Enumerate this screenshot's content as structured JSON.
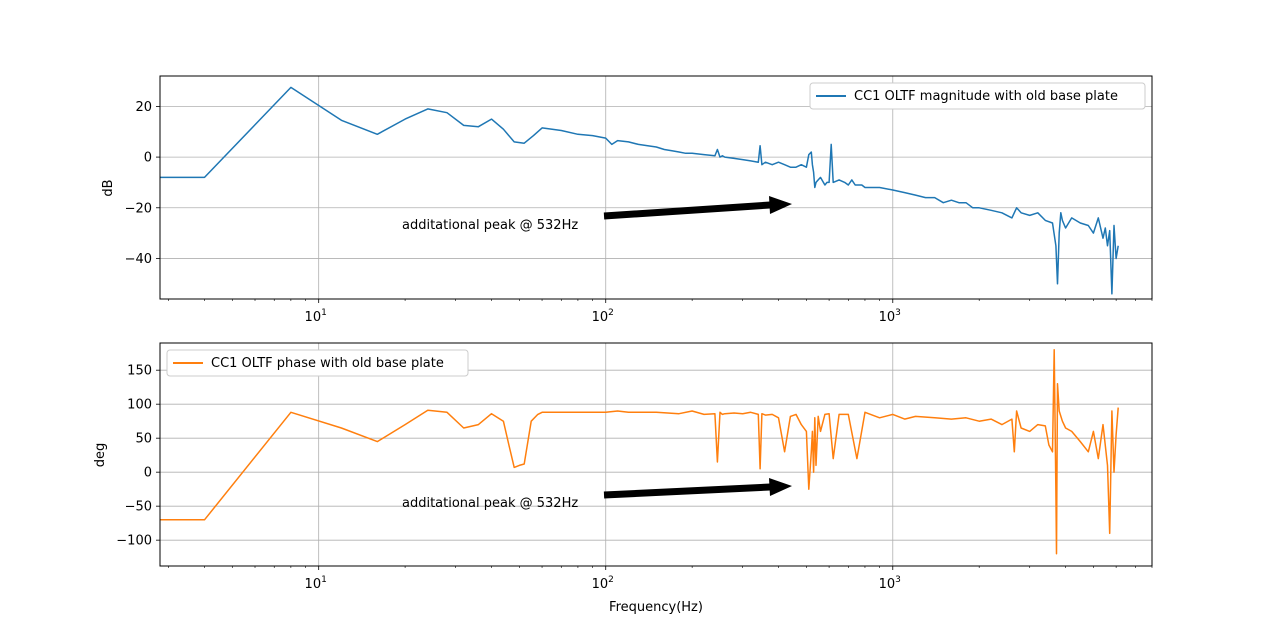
{
  "chart_data": [
    {
      "type": "line",
      "xscale": "log",
      "xlim": [
        2.8,
        8000
      ],
      "ylim": [
        -56,
        32
      ],
      "xticks": [
        10,
        100,
        1000
      ],
      "xticklabels": [
        "10^1",
        "10^2",
        "10^3"
      ],
      "yticks": [
        20,
        0,
        -20,
        -40
      ],
      "yticklabels": [
        "20",
        "0",
        "−20",
        "−40"
      ],
      "xlabel": "",
      "ylabel": "dB",
      "grid": true,
      "legend": "top-right",
      "series": [
        {
          "name": "CC1 OLTF magnitude with old base plate",
          "color": "#1f77b4",
          "x": [
            2.8,
            4,
            8,
            12,
            16,
            20,
            24,
            28,
            32,
            36,
            40,
            44,
            48,
            52,
            56,
            60,
            70,
            80,
            90,
            100,
            105,
            110,
            120,
            130,
            140,
            150,
            160,
            170,
            180,
            190,
            200,
            220,
            240,
            245,
            250,
            255,
            260,
            280,
            300,
            320,
            340,
            345,
            350,
            360,
            380,
            400,
            420,
            440,
            460,
            480,
            500,
            510,
            520,
            525,
            530,
            535,
            540,
            550,
            560,
            580,
            590,
            600,
            610,
            620,
            650,
            680,
            700,
            720,
            740,
            760,
            780,
            800,
            900,
            1000,
            1100,
            1200,
            1300,
            1400,
            1500,
            1600,
            1700,
            1800,
            1900,
            2000,
            2200,
            2400,
            2600,
            2700,
            2800,
            3000,
            3200,
            3400,
            3600,
            3700,
            3750,
            3800,
            3850,
            3900,
            4000,
            4200,
            4500,
            4800,
            5000,
            5200,
            5400,
            5500,
            5600,
            5700,
            5800,
            5900,
            6000,
            6100
          ],
          "y": [
            -8,
            -8,
            27.5,
            14.5,
            9,
            15,
            19,
            17.5,
            12.5,
            12,
            15,
            11,
            6,
            5.5,
            8.5,
            11.5,
            10.5,
            9,
            8.5,
            7.5,
            5,
            6.5,
            6,
            5,
            4.5,
            4,
            3,
            2.5,
            2,
            1.5,
            1.5,
            1,
            0.5,
            3,
            0,
            0.5,
            0,
            -0.5,
            -1,
            -1.5,
            -2,
            4.5,
            -3,
            -2,
            -3,
            -2,
            -3,
            -4,
            -4,
            -3,
            -4,
            1,
            2,
            -3,
            -6,
            -12,
            -10,
            -9,
            -8,
            -11,
            -10,
            -10,
            5,
            -10,
            -9,
            -10,
            -11,
            -9,
            -11,
            -11,
            -11,
            -12,
            -12,
            -13,
            -14,
            -15,
            -16,
            -16,
            -18,
            -17,
            -18,
            -18,
            -20,
            -20,
            -21,
            -22,
            -24,
            -20,
            -22,
            -23,
            -22,
            -25,
            -26,
            -35,
            -50,
            -30,
            -22,
            -25,
            -28,
            -24,
            -26,
            -27,
            -30,
            -24,
            -32,
            -28,
            -35,
            -29,
            -54,
            -27,
            -40,
            -35
          ]
        }
      ]
    },
    {
      "type": "line",
      "xscale": "log",
      "xlim": [
        2.8,
        8000
      ],
      "ylim": [
        -138,
        190
      ],
      "xticks": [
        10,
        100,
        1000
      ],
      "xticklabels": [
        "10^1",
        "10^2",
        "10^3"
      ],
      "yticks": [
        150,
        100,
        50,
        0,
        -50,
        -100
      ],
      "yticklabels": [
        "150",
        "100",
        "50",
        "0",
        "−50",
        "−100"
      ],
      "xlabel": "Frequency(Hz)",
      "ylabel": "deg",
      "grid": true,
      "legend": "top-left",
      "series": [
        {
          "name": "CC1 OLTF phase with old base plate",
          "color": "#ff7f0e",
          "x": [
            2.8,
            4,
            8,
            12,
            16,
            20,
            24,
            28,
            32,
            36,
            40,
            44,
            46,
            48,
            50,
            52,
            55,
            58,
            60,
            70,
            80,
            90,
            100,
            110,
            120,
            150,
            180,
            200,
            220,
            240,
            245,
            250,
            255,
            260,
            280,
            300,
            320,
            340,
            345,
            350,
            360,
            380,
            400,
            420,
            440,
            460,
            480,
            500,
            510,
            520,
            525,
            530,
            535,
            540,
            550,
            560,
            580,
            600,
            620,
            650,
            700,
            750,
            800,
            900,
            1000,
            1100,
            1200,
            1400,
            1600,
            1800,
            2000,
            2200,
            2400,
            2600,
            2650,
            2700,
            2800,
            3000,
            3200,
            3400,
            3500,
            3600,
            3650,
            3700,
            3720,
            3750,
            3800,
            3900,
            4000,
            4200,
            4500,
            4800,
            5000,
            5200,
            5400,
            5600,
            5700,
            5800,
            5900,
            6000,
            6100
          ],
          "y": [
            -70,
            -70,
            88,
            65,
            45,
            70,
            91,
            88,
            65,
            70,
            86,
            75,
            40,
            7,
            10,
            12,
            75,
            85,
            88,
            88,
            88,
            88,
            88,
            90,
            88,
            88,
            86,
            90,
            85,
            86,
            15,
            88,
            85,
            86,
            87,
            86,
            88,
            85,
            5,
            86,
            84,
            85,
            80,
            30,
            82,
            85,
            70,
            60,
            -25,
            30,
            60,
            0,
            80,
            10,
            82,
            60,
            85,
            86,
            20,
            85,
            85,
            20,
            88,
            80,
            85,
            78,
            82,
            80,
            78,
            80,
            75,
            78,
            70,
            78,
            30,
            90,
            65,
            60,
            70,
            68,
            40,
            30,
            180,
            -30,
            -120,
            130,
            90,
            75,
            65,
            60,
            45,
            30,
            60,
            20,
            70,
            10,
            -90,
            90,
            0,
            55,
            95
          ]
        }
      ]
    }
  ],
  "annotations": {
    "magnitude_text": "additational peak @ 532Hz",
    "phase_text": "additational peak @ 532Hz"
  }
}
